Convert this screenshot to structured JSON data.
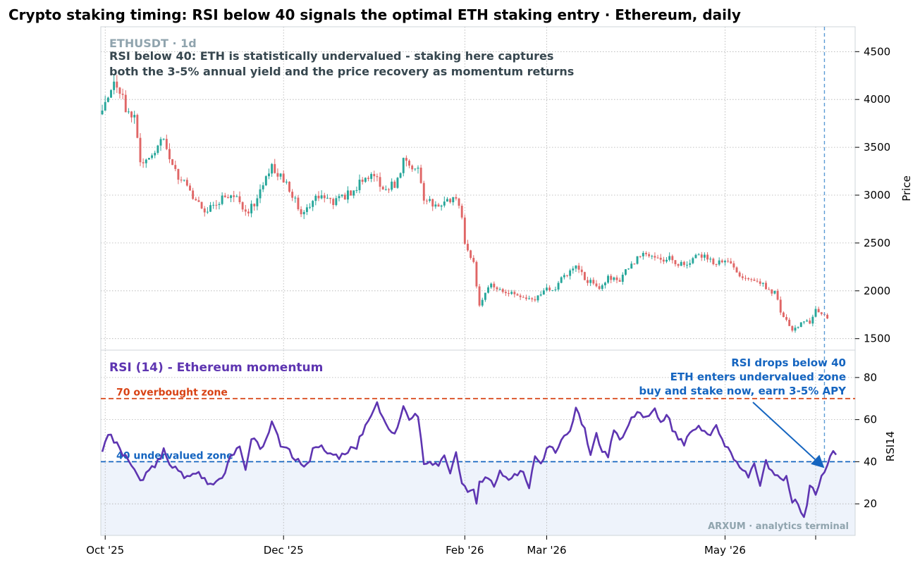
{
  "title": "Crypto staking timing: RSI below 40 signals the optimal ETH staking entry  ·  Ethereum, daily",
  "colors": {
    "up": "#26a69a",
    "down": "#e06666",
    "rsi_line": "#5e35b1",
    "overbought": "#d84315",
    "undervalued": "#1565c0",
    "zone_fill": "#eef3fb",
    "muted": "#90a4ae",
    "note": "#37474f"
  },
  "chart_data": [
    {
      "type": "candlestick",
      "symbol_label": "ETHUSDT · 1d",
      "note_lines": [
        "RSI below 40: ETH is statistically undervalued - staking here captures",
        "both the 3-5% annual yield and the price recovery as momentum returns"
      ],
      "ylabel": "Price",
      "ylim": [
        1380,
        4760
      ],
      "yticks": [
        1500,
        2000,
        2500,
        3000,
        3500,
        4000,
        4500
      ],
      "start_date": "2025-09-30",
      "end_date": "2026-06-08",
      "xticks": [
        {
          "date": "2025-10-01",
          "label": "Oct '25"
        },
        {
          "date": "2025-12-01",
          "label": "Dec '25"
        },
        {
          "date": "2026-02-01",
          "label": "Feb '26"
        },
        {
          "date": "2026-03-01",
          "label": "Mar '26"
        },
        {
          "date": "2026-05-01",
          "label": "May '26"
        },
        {
          "date": "2026-06-01",
          "label": ""
        }
      ],
      "signal_date": "2026-06-04",
      "keypoints": [
        {
          "date": "2025-09-30",
          "close": 3880
        },
        {
          "date": "2025-10-03",
          "close": 4160
        },
        {
          "date": "2025-10-04",
          "close": 4230
        },
        {
          "date": "2025-10-08",
          "close": 3920
        },
        {
          "date": "2025-10-11",
          "close": 3840
        },
        {
          "date": "2025-10-13",
          "close": 3350
        },
        {
          "date": "2025-10-17",
          "close": 3420
        },
        {
          "date": "2025-10-21",
          "close": 3600
        },
        {
          "date": "2025-10-25",
          "close": 3250
        },
        {
          "date": "2025-11-01",
          "close": 2950
        },
        {
          "date": "2025-11-04",
          "close": 2780
        },
        {
          "date": "2025-11-08",
          "close": 2930
        },
        {
          "date": "2025-11-14",
          "close": 3000
        },
        {
          "date": "2025-11-18",
          "close": 2800
        },
        {
          "date": "2025-11-22",
          "close": 2960
        },
        {
          "date": "2025-11-27",
          "close": 3320
        },
        {
          "date": "2025-12-02",
          "close": 3100
        },
        {
          "date": "2025-12-07",
          "close": 2830
        },
        {
          "date": "2025-12-12",
          "close": 2980
        },
        {
          "date": "2025-12-18",
          "close": 2920
        },
        {
          "date": "2025-12-25",
          "close": 3050
        },
        {
          "date": "2025-12-31",
          "close": 3250
        },
        {
          "date": "2026-01-03",
          "close": 3090
        },
        {
          "date": "2026-01-08",
          "close": 3100
        },
        {
          "date": "2026-01-11",
          "close": 3340
        },
        {
          "date": "2026-01-16",
          "close": 3280
        },
        {
          "date": "2026-01-18",
          "close": 2960
        },
        {
          "date": "2026-01-24",
          "close": 2880
        },
        {
          "date": "2026-01-28",
          "close": 3000
        },
        {
          "date": "2026-01-31",
          "close": 2800
        },
        {
          "date": "2026-02-01",
          "close": 2480
        },
        {
          "date": "2026-02-04",
          "close": 2280
        },
        {
          "date": "2026-02-06",
          "close": 1850
        },
        {
          "date": "2026-02-10",
          "close": 2080
        },
        {
          "date": "2026-02-15",
          "close": 1980
        },
        {
          "date": "2026-02-20",
          "close": 1950
        },
        {
          "date": "2026-02-24",
          "close": 1900
        },
        {
          "date": "2026-02-28",
          "close": 2000
        },
        {
          "date": "2026-03-04",
          "close": 2020
        },
        {
          "date": "2026-03-07",
          "close": 2160
        },
        {
          "date": "2026-03-11",
          "close": 2250
        },
        {
          "date": "2026-03-15",
          "close": 2100
        },
        {
          "date": "2026-03-19",
          "close": 2050
        },
        {
          "date": "2026-03-22",
          "close": 2150
        },
        {
          "date": "2026-03-26",
          "close": 2120
        },
        {
          "date": "2026-03-30",
          "close": 2280
        },
        {
          "date": "2026-04-04",
          "close": 2400
        },
        {
          "date": "2026-04-07",
          "close": 2320
        },
        {
          "date": "2026-04-12",
          "close": 2330
        },
        {
          "date": "2026-04-17",
          "close": 2260
        },
        {
          "date": "2026-04-22",
          "close": 2380
        },
        {
          "date": "2026-04-27",
          "close": 2300
        },
        {
          "date": "2026-05-01",
          "close": 2330
        },
        {
          "date": "2026-05-04",
          "close": 2220
        },
        {
          "date": "2026-05-07",
          "close": 2120
        },
        {
          "date": "2026-05-12",
          "close": 2110
        },
        {
          "date": "2026-05-16",
          "close": 2000
        },
        {
          "date": "2026-05-18",
          "close": 1980
        },
        {
          "date": "2026-05-20",
          "close": 1780
        },
        {
          "date": "2026-05-22",
          "close": 1720
        },
        {
          "date": "2026-05-24",
          "close": 1580
        },
        {
          "date": "2026-05-27",
          "close": 1650
        },
        {
          "date": "2026-05-30",
          "close": 1680
        },
        {
          "date": "2026-06-01",
          "close": 1820
        },
        {
          "date": "2026-06-03",
          "close": 1760
        },
        {
          "date": "2026-06-05",
          "close": 1710
        }
      ]
    },
    {
      "type": "line",
      "title": "RSI (14) - Ethereum momentum",
      "ylabel": "RSI14",
      "ylim": [
        5,
        93
      ],
      "yticks": [
        20,
        40,
        60,
        80
      ],
      "thresholds": [
        {
          "value": 70,
          "label": "70  overbought zone"
        },
        {
          "value": 40,
          "label": "40  undervalued zone"
        }
      ],
      "annotation_lines": [
        "RSI drops below 40",
        "ETH enters undervalued zone",
        "buy and stake now, earn 3-5% APY"
      ],
      "annotation_point": {
        "date": "2026-06-04",
        "value": 37
      },
      "watermark": "ARXUM · analytics terminal",
      "keypoints": [
        {
          "date": "2025-09-30",
          "value": 45
        },
        {
          "date": "2025-10-02",
          "value": 53
        },
        {
          "date": "2025-10-04",
          "value": 50
        },
        {
          "date": "2025-10-07",
          "value": 44
        },
        {
          "date": "2025-10-10",
          "value": 38
        },
        {
          "date": "2025-10-13",
          "value": 30
        },
        {
          "date": "2025-10-16",
          "value": 36
        },
        {
          "date": "2025-10-19",
          "value": 40
        },
        {
          "date": "2025-10-21",
          "value": 45
        },
        {
          "date": "2025-10-23",
          "value": 40
        },
        {
          "date": "2025-10-26",
          "value": 35
        },
        {
          "date": "2025-10-29",
          "value": 32
        },
        {
          "date": "2025-11-01",
          "value": 35
        },
        {
          "date": "2025-11-04",
          "value": 31
        },
        {
          "date": "2025-11-07",
          "value": 28
        },
        {
          "date": "2025-11-10",
          "value": 32
        },
        {
          "date": "2025-11-13",
          "value": 42
        },
        {
          "date": "2025-11-16",
          "value": 48
        },
        {
          "date": "2025-11-18",
          "value": 35
        },
        {
          "date": "2025-11-20",
          "value": 52
        },
        {
          "date": "2025-11-23",
          "value": 47
        },
        {
          "date": "2025-11-25",
          "value": 50
        },
        {
          "date": "2025-11-27",
          "value": 58
        },
        {
          "date": "2025-11-30",
          "value": 48
        },
        {
          "date": "2025-12-03",
          "value": 45
        },
        {
          "date": "2025-12-06",
          "value": 40
        },
        {
          "date": "2025-12-09",
          "value": 38
        },
        {
          "date": "2025-12-11",
          "value": 45
        },
        {
          "date": "2025-12-14",
          "value": 48
        },
        {
          "date": "2025-12-17",
          "value": 43
        },
        {
          "date": "2025-12-20",
          "value": 42
        },
        {
          "date": "2025-12-23",
          "value": 45
        },
        {
          "date": "2025-12-26",
          "value": 47
        },
        {
          "date": "2025-12-29",
          "value": 58
        },
        {
          "date": "2025-12-31",
          "value": 62
        },
        {
          "date": "2026-01-02",
          "value": 68
        },
        {
          "date": "2026-01-04",
          "value": 60
        },
        {
          "date": "2026-01-07",
          "value": 53
        },
        {
          "date": "2026-01-09",
          "value": 56
        },
        {
          "date": "2026-01-11",
          "value": 67
        },
        {
          "date": "2026-01-13",
          "value": 60
        },
        {
          "date": "2026-01-16",
          "value": 62
        },
        {
          "date": "2026-01-18",
          "value": 40
        },
        {
          "date": "2026-01-22",
          "value": 38
        },
        {
          "date": "2026-01-25",
          "value": 42
        },
        {
          "date": "2026-01-27",
          "value": 33
        },
        {
          "date": "2026-01-29",
          "value": 44
        },
        {
          "date": "2026-01-31",
          "value": 30
        },
        {
          "date": "2026-02-02",
          "value": 25
        },
        {
          "date": "2026-02-04",
          "value": 27
        },
        {
          "date": "2026-02-05",
          "value": 19
        },
        {
          "date": "2026-02-06",
          "value": 30
        },
        {
          "date": "2026-02-09",
          "value": 32
        },
        {
          "date": "2026-02-11",
          "value": 28
        },
        {
          "date": "2026-02-13",
          "value": 35
        },
        {
          "date": "2026-02-16",
          "value": 32
        },
        {
          "date": "2026-02-19",
          "value": 34
        },
        {
          "date": "2026-02-21",
          "value": 35
        },
        {
          "date": "2026-02-23",
          "value": 28
        },
        {
          "date": "2026-02-25",
          "value": 44
        },
        {
          "date": "2026-02-27",
          "value": 40
        },
        {
          "date": "2026-03-02",
          "value": 48
        },
        {
          "date": "2026-03-04",
          "value": 43
        },
        {
          "date": "2026-03-06",
          "value": 50
        },
        {
          "date": "2026-03-08",
          "value": 52
        },
        {
          "date": "2026-03-10",
          "value": 60
        },
        {
          "date": "2026-03-11",
          "value": 66
        },
        {
          "date": "2026-03-14",
          "value": 55
        },
        {
          "date": "2026-03-16",
          "value": 43
        },
        {
          "date": "2026-03-18",
          "value": 53
        },
        {
          "date": "2026-03-20",
          "value": 45
        },
        {
          "date": "2026-03-22",
          "value": 42
        },
        {
          "date": "2026-03-24",
          "value": 55
        },
        {
          "date": "2026-03-26",
          "value": 50
        },
        {
          "date": "2026-03-29",
          "value": 58
        },
        {
          "date": "2026-04-01",
          "value": 65
        },
        {
          "date": "2026-04-04",
          "value": 60
        },
        {
          "date": "2026-04-07",
          "value": 64
        },
        {
          "date": "2026-04-09",
          "value": 58
        },
        {
          "date": "2026-04-11",
          "value": 62
        },
        {
          "date": "2026-04-14",
          "value": 53
        },
        {
          "date": "2026-04-17",
          "value": 48
        },
        {
          "date": "2026-04-20",
          "value": 55
        },
        {
          "date": "2026-04-23",
          "value": 56
        },
        {
          "date": "2026-04-25",
          "value": 52
        },
        {
          "date": "2026-04-28",
          "value": 57
        },
        {
          "date": "2026-05-01",
          "value": 48
        },
        {
          "date": "2026-05-03",
          "value": 44
        },
        {
          "date": "2026-05-06",
          "value": 36
        },
        {
          "date": "2026-05-09",
          "value": 33
        },
        {
          "date": "2026-05-11",
          "value": 38
        },
        {
          "date": "2026-05-13",
          "value": 30
        },
        {
          "date": "2026-05-15",
          "value": 40
        },
        {
          "date": "2026-05-17",
          "value": 35
        },
        {
          "date": "2026-05-20",
          "value": 31
        },
        {
          "date": "2026-05-22",
          "value": 32
        },
        {
          "date": "2026-05-24",
          "value": 22
        },
        {
          "date": "2026-05-26",
          "value": 20
        },
        {
          "date": "2026-05-28",
          "value": 13
        },
        {
          "date": "2026-05-30",
          "value": 28
        },
        {
          "date": "2026-06-01",
          "value": 25
        },
        {
          "date": "2026-06-03",
          "value": 32
        },
        {
          "date": "2026-06-05",
          "value": 38
        },
        {
          "date": "2026-06-07",
          "value": 45
        },
        {
          "date": "2026-06-08",
          "value": 42
        }
      ]
    }
  ]
}
